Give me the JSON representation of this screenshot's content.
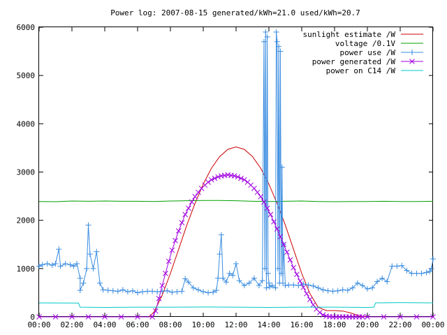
{
  "chart_data": {
    "type": "line",
    "title": "Power log: 2007-08-15 generated/kWh=21.0 used/kWh=20.7",
    "xlabel": "",
    "ylabel": "",
    "xlim": [
      0,
      24
    ],
    "ylim": [
      0,
      6000
    ],
    "x_tick_values": [
      0,
      2,
      4,
      6,
      8,
      10,
      12,
      14,
      16,
      18,
      20,
      22,
      24
    ],
    "x_tick_labels": [
      "00:00",
      "02:00",
      "04:00",
      "06:00",
      "08:00",
      "10:00",
      "12:00",
      "14:00",
      "16:00",
      "18:00",
      "20:00",
      "22:00",
      "00:00"
    ],
    "y_tick_values": [
      0,
      1000,
      2000,
      3000,
      4000,
      5000,
      6000
    ],
    "y_tick_labels": [
      "0",
      "1000",
      "2000",
      "3000",
      "4000",
      "5000",
      "6000"
    ],
    "grid": false,
    "legend_position": "top-right",
    "series": [
      {
        "name": "sunlight estimate /W",
        "color": "#cc0000",
        "style": "line",
        "x": [
          0,
          6.7,
          7.0,
          7.5,
          8.0,
          8.5,
          9.0,
          9.5,
          10.0,
          10.5,
          11.0,
          11.5,
          12.0,
          12.5,
          13.0,
          13.5,
          14.0,
          14.5,
          15.0,
          15.5,
          16.0,
          16.5,
          17.0,
          17.5,
          18.0,
          18.5,
          19.0,
          19.5,
          20.0,
          24
        ],
        "y": [
          0,
          0,
          100,
          450,
          900,
          1400,
          1900,
          2350,
          2750,
          3080,
          3320,
          3470,
          3520,
          3470,
          3320,
          3080,
          2750,
          2350,
          1900,
          1400,
          900,
          480,
          200,
          130,
          130,
          120,
          80,
          20,
          0,
          0
        ]
      },
      {
        "name": "voltage /0.1V",
        "color": "#00a000",
        "style": "line",
        "x": [
          0,
          1,
          2,
          3,
          4,
          5,
          6,
          7,
          8,
          9,
          10,
          11,
          12,
          13,
          14,
          15,
          16,
          17,
          18,
          19,
          20,
          21,
          22,
          23,
          24
        ],
        "y": [
          2390,
          2385,
          2400,
          2395,
          2400,
          2395,
          2395,
          2390,
          2400,
          2405,
          2410,
          2410,
          2405,
          2395,
          2390,
          2395,
          2400,
          2390,
          2385,
          2390,
          2390,
          2395,
          2390,
          2390,
          2395
        ]
      },
      {
        "name": "power use /W",
        "color": "#3a8ce0",
        "style": "plus",
        "x": [
          0.0,
          0.2,
          0.5,
          0.8,
          1.0,
          1.2,
          1.3,
          1.6,
          1.9,
          2.1,
          2.3,
          2.5,
          2.5,
          2.7,
          2.9,
          3.0,
          3.1,
          3.3,
          3.5,
          3.7,
          3.9,
          4.2,
          4.5,
          4.8,
          5.1,
          5.4,
          5.7,
          6.0,
          6.3,
          6.6,
          6.9,
          7.2,
          7.5,
          7.8,
          8.1,
          8.4,
          8.7,
          8.9,
          9.1,
          9.4,
          9.7,
          10.0,
          10.3,
          10.6,
          10.8,
          10.9,
          11.0,
          11.1,
          11.2,
          11.4,
          11.6,
          11.8,
          12.0,
          12.2,
          12.5,
          12.8,
          13.1,
          13.4,
          13.6,
          13.7,
          13.75,
          13.8,
          13.85,
          13.9,
          13.95,
          14.0,
          14.05,
          14.2,
          14.4,
          14.45,
          14.5,
          14.55,
          14.6,
          14.65,
          14.7,
          14.75,
          14.8,
          14.85,
          14.9,
          15.0,
          15.2,
          15.5,
          15.8,
          16.1,
          16.4,
          16.7,
          17.0,
          17.3,
          17.6,
          17.9,
          18.2,
          18.5,
          18.8,
          19.1,
          19.4,
          19.7,
          20.0,
          20.3,
          20.6,
          20.9,
          21.2,
          21.5,
          21.8,
          22.1,
          22.4,
          22.7,
          23.0,
          23.3,
          23.6,
          23.8,
          23.9,
          24.0
        ],
        "y": [
          1050,
          1080,
          1100,
          1070,
          1100,
          1400,
          1050,
          1100,
          1080,
          1050,
          1100,
          800,
          550,
          700,
          1000,
          1900,
          1300,
          1000,
          1350,
          700,
          560,
          550,
          540,
          530,
          560,
          520,
          540,
          500,
          520,
          530,
          530,
          520,
          530,
          540,
          510,
          520,
          530,
          790,
          720,
          600,
          560,
          520,
          500,
          510,
          550,
          800,
          1300,
          1700,
          800,
          720,
          900,
          860,
          1100,
          750,
          650,
          700,
          800,
          650,
          750,
          5700,
          1000,
          5900,
          600,
          5800,
          900,
          700,
          620,
          650,
          600,
          5900,
          5700,
          1000,
          5600,
          700,
          5500,
          900,
          3100,
          700,
          1500,
          650,
          660,
          660,
          650,
          680,
          660,
          640,
          600,
          560,
          540,
          530,
          540,
          560,
          550,
          600,
          700,
          650,
          580,
          600,
          730,
          800,
          730,
          1050,
          1050,
          1060,
          960,
          900,
          900,
          900,
          920,
          940,
          1000,
          1200
        ]
      },
      {
        "name": "power generated /W",
        "color": "#a000e0",
        "style": "cross",
        "x": [
          0,
          1,
          2,
          3,
          4,
          5,
          6,
          6.9,
          7.1,
          7.3,
          7.5,
          7.7,
          7.9,
          8.1,
          8.3,
          8.5,
          8.7,
          8.9,
          9.1,
          9.3,
          9.5,
          9.7,
          9.9,
          10.1,
          10.3,
          10.5,
          10.7,
          10.9,
          11.1,
          11.3,
          11.5,
          11.7,
          11.9,
          12.1,
          12.3,
          12.5,
          12.7,
          12.9,
          13.1,
          13.3,
          13.5,
          13.7,
          13.9,
          14.1,
          14.3,
          14.5,
          14.7,
          14.9,
          15.1,
          15.3,
          15.5,
          15.7,
          15.9,
          16.1,
          16.3,
          16.5,
          16.7,
          16.9,
          17.1,
          17.3,
          17.5,
          17.7,
          17.9,
          18.1,
          18.3,
          18.5,
          18.7,
          18.9,
          19.1,
          19.3,
          19.5,
          19.7,
          20,
          21,
          22,
          23,
          24
        ],
        "y": [
          0,
          0,
          0,
          0,
          0,
          0,
          0,
          0,
          120,
          380,
          650,
          900,
          1150,
          1380,
          1580,
          1780,
          1950,
          2120,
          2250,
          2380,
          2490,
          2580,
          2660,
          2730,
          2790,
          2840,
          2870,
          2900,
          2920,
          2930,
          2940,
          2930,
          2920,
          2900,
          2870,
          2840,
          2790,
          2730,
          2660,
          2580,
          2490,
          2380,
          2250,
          2120,
          1970,
          1820,
          1660,
          1500,
          1340,
          1180,
          1020,
          880,
          740,
          610,
          480,
          360,
          250,
          160,
          90,
          40,
          15,
          5,
          0,
          0,
          0,
          0,
          0,
          0,
          0,
          0,
          0,
          0,
          0,
          0,
          0,
          0,
          0
        ]
      },
      {
        "name": "power on C14 /W",
        "color": "#00c8c8",
        "style": "line",
        "x": [
          0,
          2.4,
          2.5,
          4,
          6,
          8,
          10,
          12,
          14,
          16,
          18,
          20,
          20.4,
          20.5,
          22,
          24
        ],
        "y": [
          290,
          285,
          200,
          195,
          200,
          200,
          205,
          200,
          195,
          200,
          200,
          195,
          200,
          290,
          295,
          290
        ]
      }
    ]
  }
}
